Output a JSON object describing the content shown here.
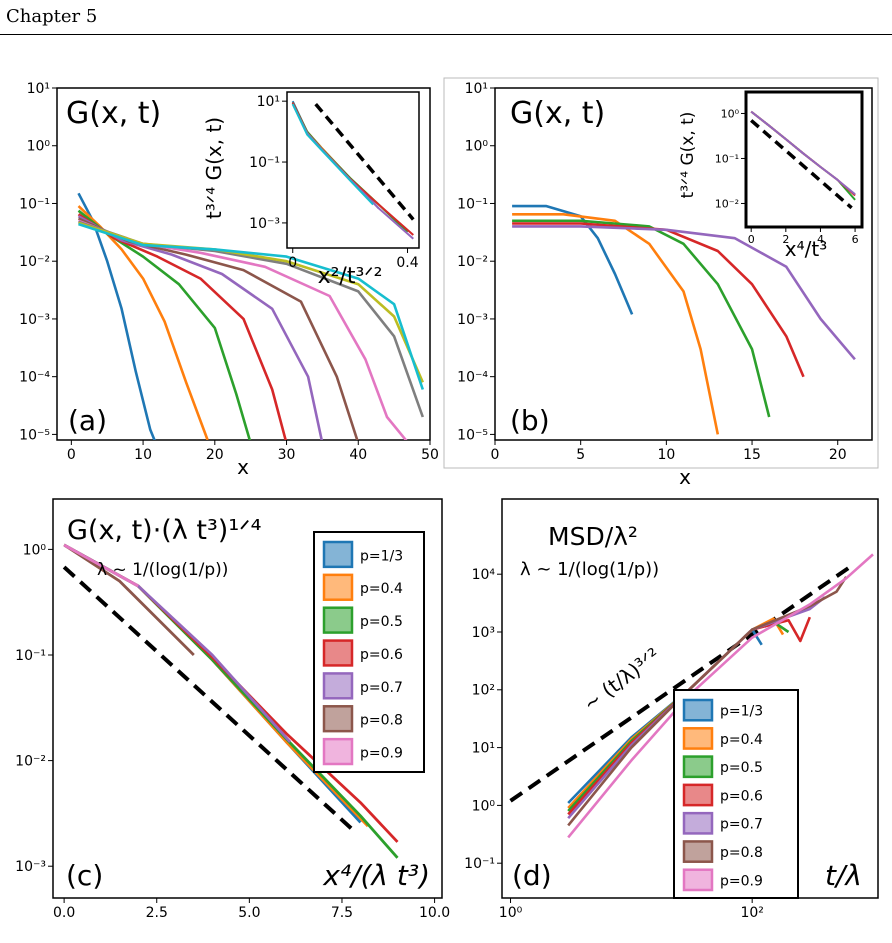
{
  "header": {
    "chapter": "Chapter 5"
  },
  "chart_data": [
    {
      "id": "a",
      "type": "line",
      "panel_label": "(a)",
      "title": "G(x, t)",
      "xlabel": "x",
      "ylabel": "",
      "xlim": [
        -2,
        50
      ],
      "ylim": [
        8e-06,
        10
      ],
      "yscale": "log",
      "xticks": [
        0,
        10,
        20,
        30,
        40,
        50
      ],
      "xtick_labels": [
        "0",
        "10",
        "20",
        "30",
        "40",
        "50"
      ],
      "yticks": [
        1e-05,
        0.0001,
        0.001,
        0.01,
        0.1,
        1,
        10
      ],
      "ytick_labels": [
        "10⁻⁵",
        "10⁻⁴",
        "10⁻³",
        "10⁻²",
        "10⁻¹",
        "10⁰",
        "10¹"
      ],
      "series": [
        {
          "color": "#1f77b4",
          "x": [
            1,
            3,
            5,
            7,
            9,
            11,
            12
          ],
          "y": [
            0.15,
            0.05,
            0.01,
            0.0015,
            0.00012,
            1.2e-05,
            6e-06
          ]
        },
        {
          "color": "#ff7f0e",
          "x": [
            1,
            4,
            7,
            10,
            13,
            16,
            19
          ],
          "y": [
            0.09,
            0.04,
            0.016,
            0.005,
            0.0009,
            8e-05,
            8e-06
          ]
        },
        {
          "color": "#2ca02c",
          "x": [
            1,
            5,
            10,
            15,
            20,
            23,
            25
          ],
          "y": [
            0.075,
            0.03,
            0.012,
            0.004,
            0.0007,
            5e-05,
            7e-06
          ]
        },
        {
          "color": "#d62728",
          "x": [
            1,
            6,
            12,
            18,
            24,
            28,
            30
          ],
          "y": [
            0.065,
            0.025,
            0.012,
            0.005,
            0.001,
            6e-05,
            7e-06
          ]
        },
        {
          "color": "#9467bd",
          "x": [
            1,
            7,
            14,
            21,
            28,
            33,
            35
          ],
          "y": [
            0.06,
            0.023,
            0.013,
            0.006,
            0.0015,
            0.0001,
            7e-06
          ]
        },
        {
          "color": "#8c564b",
          "x": [
            1,
            8,
            16,
            24,
            32,
            37,
            40
          ],
          "y": [
            0.055,
            0.022,
            0.013,
            0.007,
            0.002,
            0.0001,
            7e-06
          ]
        },
        {
          "color": "#e377c2",
          "x": [
            1,
            9,
            18,
            27,
            36,
            41,
            44,
            47
          ],
          "y": [
            0.05,
            0.021,
            0.014,
            0.008,
            0.0025,
            0.0002,
            2e-05,
            7e-06
          ]
        },
        {
          "color": "#7f7f7f",
          "x": [
            1,
            10,
            20,
            30,
            40,
            45,
            49
          ],
          "y": [
            0.048,
            0.02,
            0.015,
            0.009,
            0.003,
            0.0005,
            2e-05
          ]
        },
        {
          "color": "#bcbd22",
          "x": [
            1,
            10,
            20,
            30,
            40,
            45,
            49
          ],
          "y": [
            0.046,
            0.02,
            0.016,
            0.01,
            0.004,
            0.0011,
            8e-05
          ]
        },
        {
          "color": "#17becf",
          "x": [
            1,
            10,
            20,
            30,
            40,
            45,
            49
          ],
          "y": [
            0.044,
            0.019,
            0.016,
            0.012,
            0.005,
            0.0018,
            6e-05
          ]
        }
      ],
      "inset": {
        "title": "",
        "xlabel": "x²/t³ᐟ²",
        "ylabel": "t³ᐟ⁴ G(x, t)",
        "xlim": [
          -0.02,
          0.44
        ],
        "ylim": [
          0.00015,
          20
        ],
        "yscale": "log",
        "xticks": [
          0,
          0.4
        ],
        "xtick_labels": [
          "0",
          "0.4"
        ],
        "yticks": [
          0.001,
          0.1,
          10
        ],
        "ytick_labels": [
          "10⁻³",
          "10⁻¹",
          "10¹"
        ],
        "reference": {
          "x": [
            0.08,
            0.42
          ],
          "y": [
            8,
            0.0013
          ]
        },
        "series": [
          {
            "color": "#1f77b4",
            "x": [
              0,
              0.05,
              0.1,
              0.2,
              0.3
            ],
            "y": [
              10,
              1,
              0.3,
              0.03,
              0.003
            ]
          },
          {
            "color": "#ff7f0e",
            "x": [
              0,
              0.05,
              0.1,
              0.2,
              0.3,
              0.38
            ],
            "y": [
              9,
              1,
              0.3,
              0.03,
              0.004,
              0.0008
            ]
          },
          {
            "color": "#2ca02c",
            "x": [
              0,
              0.05,
              0.1,
              0.2,
              0.3,
              0.4
            ],
            "y": [
              9,
              1,
              0.28,
              0.03,
              0.004,
              0.0005
            ]
          },
          {
            "color": "#d62728",
            "x": [
              0,
              0.05,
              0.1,
              0.2,
              0.3,
              0.42
            ],
            "y": [
              9,
              0.9,
              0.27,
              0.028,
              0.004,
              0.0004
            ]
          },
          {
            "color": "#9467bd",
            "x": [
              0,
              0.05,
              0.1,
              0.2,
              0.3,
              0.42
            ],
            "y": [
              8,
              0.9,
              0.27,
              0.027,
              0.003,
              0.0003
            ]
          },
          {
            "color": "#17becf",
            "x": [
              0,
              0.05,
              0.1,
              0.2,
              0.28
            ],
            "y": [
              8,
              0.8,
              0.25,
              0.025,
              0.004
            ]
          }
        ]
      }
    },
    {
      "id": "b",
      "type": "line",
      "panel_label": "(b)",
      "title": "G(x, t)",
      "xlabel": "x",
      "ylabel": "",
      "xlim": [
        0,
        22
      ],
      "ylim": [
        8e-06,
        10
      ],
      "yscale": "log",
      "xticks": [
        0,
        5,
        10,
        15,
        20
      ],
      "xtick_labels": [
        "0",
        "5",
        "10",
        "15",
        "20"
      ],
      "yticks": [
        1e-05,
        0.0001,
        0.001,
        0.01,
        0.1,
        1,
        10
      ],
      "ytick_labels": [
        "10⁻⁵",
        "10⁻⁴",
        "10⁻³",
        "10⁻²",
        "10⁻¹",
        "10⁰",
        "10¹"
      ],
      "series": [
        {
          "color": "#1f77b4",
          "x": [
            1,
            3,
            5,
            6,
            7,
            8
          ],
          "y": [
            0.09,
            0.09,
            0.06,
            0.025,
            0.006,
            0.0012
          ]
        },
        {
          "color": "#ff7f0e",
          "x": [
            1,
            4,
            7,
            9,
            11,
            12,
            13
          ],
          "y": [
            0.065,
            0.065,
            0.05,
            0.02,
            0.003,
            0.0003,
            1e-05
          ]
        },
        {
          "color": "#2ca02c",
          "x": [
            1,
            5,
            9,
            11,
            13,
            15,
            16
          ],
          "y": [
            0.05,
            0.05,
            0.04,
            0.02,
            0.004,
            0.0003,
            2e-05
          ]
        },
        {
          "color": "#d62728",
          "x": [
            1,
            5,
            10,
            13,
            15,
            17,
            18
          ],
          "y": [
            0.045,
            0.045,
            0.035,
            0.015,
            0.004,
            0.0005,
            0.0001
          ]
        },
        {
          "color": "#9467bd",
          "x": [
            1,
            5,
            10,
            14,
            17,
            19,
            21
          ],
          "y": [
            0.04,
            0.04,
            0.035,
            0.025,
            0.008,
            0.001,
            0.0002
          ]
        }
      ],
      "inset": {
        "title": "",
        "xlabel": "x⁴/t³",
        "ylabel": "t³ᐟ⁴ G(x, t)",
        "xlim": [
          -0.3,
          6.4
        ],
        "ylim": [
          0.003,
          3
        ],
        "yscale": "log",
        "xticks": [
          0,
          2,
          4,
          6
        ],
        "xtick_labels": [
          "0",
          "2",
          "4",
          "6"
        ],
        "yticks": [
          0.01,
          0.1,
          1
        ],
        "ytick_labels": [
          "10⁻²",
          "10⁻¹",
          "10⁰"
        ],
        "reference": {
          "x": [
            0,
            5.8
          ],
          "y": [
            0.7,
            0.008
          ]
        },
        "series": [
          {
            "color": "#1f77b4",
            "x": [
              0,
              1,
              2,
              3
            ],
            "y": [
              1.1,
              0.55,
              0.27,
              0.13
            ]
          },
          {
            "color": "#ff7f0e",
            "x": [
              0,
              1,
              2,
              3,
              4
            ],
            "y": [
              1.1,
              0.55,
              0.27,
              0.13,
              0.065
            ]
          },
          {
            "color": "#2ca02c",
            "x": [
              0,
              1,
              2,
              3,
              4,
              5,
              6
            ],
            "y": [
              1.1,
              0.55,
              0.27,
              0.13,
              0.065,
              0.033,
              0.012
            ]
          },
          {
            "color": "#d62728",
            "x": [
              0,
              1,
              2,
              3,
              4,
              5,
              6
            ],
            "y": [
              1.1,
              0.55,
              0.27,
              0.13,
              0.065,
              0.033,
              0.015
            ]
          },
          {
            "color": "#9467bd",
            "x": [
              0,
              1,
              2,
              3,
              4,
              5,
              6
            ],
            "y": [
              1.1,
              0.55,
              0.27,
              0.13,
              0.065,
              0.033,
              0.016
            ]
          }
        ]
      }
    },
    {
      "id": "c",
      "type": "line",
      "panel_label": "(c)",
      "title": "G(x, t)·(λ t³)¹ᐟ⁴",
      "subtitle": "λ ~ 1/(log(1/p))",
      "xlabel": "x⁴/(λ t³)",
      "ylabel": "",
      "xlim": [
        -0.3,
        10.2
      ],
      "ylim": [
        0.0005,
        3
      ],
      "yscale": "log",
      "xticks": [
        0,
        2.5,
        5,
        7.5,
        10
      ],
      "xtick_labels": [
        "0.0",
        "2.5",
        "5.0",
        "7.5",
        "10.0"
      ],
      "yticks": [
        0.001,
        0.01,
        0.1,
        1
      ],
      "ytick_labels": [
        "10⁻³",
        "10⁻²",
        "10⁻¹",
        "10⁰"
      ],
      "legend": [
        "p=1/3",
        "p=0.4",
        "p=0.5",
        "p=0.6",
        "p=0.7",
        "p=0.8",
        "p=0.9"
      ],
      "reference": {
        "x": [
          0,
          7.8
        ],
        "y": [
          0.68,
          0.0022
        ]
      },
      "series": [
        {
          "name": "p=1/3",
          "color": "#1f77b4",
          "x": [
            0,
            2,
            4,
            6,
            8
          ],
          "y": [
            1.1,
            0.45,
            0.09,
            0.015,
            0.0026
          ]
        },
        {
          "name": "p=0.4",
          "color": "#ff7f0e",
          "x": [
            0,
            2,
            4,
            6,
            8.2
          ],
          "y": [
            1.1,
            0.45,
            0.09,
            0.015,
            0.0024
          ]
        },
        {
          "name": "p=0.5",
          "color": "#2ca02c",
          "x": [
            0,
            2,
            4,
            6,
            8,
            9
          ],
          "y": [
            1.1,
            0.45,
            0.09,
            0.016,
            0.003,
            0.0012
          ]
        },
        {
          "name": "p=0.6",
          "color": "#d62728",
          "x": [
            0,
            2,
            4,
            6,
            8,
            9
          ],
          "y": [
            1.1,
            0.45,
            0.095,
            0.018,
            0.004,
            0.0017
          ]
        },
        {
          "name": "p=0.7",
          "color": "#9467bd",
          "x": [
            0,
            2,
            4,
            6.1
          ],
          "y": [
            1.1,
            0.45,
            0.1,
            0.015
          ]
        },
        {
          "name": "p=0.8",
          "color": "#8c564b",
          "x": [
            0,
            1.5,
            3.5
          ],
          "y": [
            1.1,
            0.5,
            0.1
          ]
        },
        {
          "name": "p=0.9",
          "color": "#e377c2",
          "x": [
            0,
            1,
            2
          ],
          "y": [
            1.1,
            0.7,
            0.45
          ]
        }
      ]
    },
    {
      "id": "d",
      "type": "line",
      "panel_label": "(d)",
      "title": "MSD/λ²",
      "subtitle": "λ ~ 1/(log(1/p))",
      "xlabel": "t/λ",
      "ylabel": "",
      "xlim": [
        0.85,
        1100
      ],
      "ylim": [
        0.025,
        200000
      ],
      "xscale": "log",
      "yscale": "log",
      "xticks": [
        1,
        100
      ],
      "xtick_labels": [
        "10⁰",
        "10²"
      ],
      "yticks": [
        0.1,
        1,
        10,
        100,
        1000,
        10000
      ],
      "ytick_labels": [
        "10⁻¹",
        "10⁰",
        "10¹",
        "10²",
        "10³",
        "10⁴"
      ],
      "legend": [
        "p=1/3",
        "p=0.4",
        "p=0.5",
        "p=0.6",
        "p=0.7",
        "p=0.8",
        "p=0.9"
      ],
      "reference": {
        "x": [
          1,
          700
        ],
        "y": [
          1.2,
          15000
        ],
        "label": "~ (t/λ)³ᐟ²"
      },
      "series": [
        {
          "name": "p=1/3",
          "color": "#1f77b4",
          "x": [
            3,
            10,
            30,
            100,
            120
          ],
          "y": [
            1.1,
            15,
            100,
            1100,
            600
          ]
        },
        {
          "name": "p=0.4",
          "color": "#ff7f0e",
          "x": [
            3,
            10,
            30,
            100,
            150,
            180
          ],
          "y": [
            0.9,
            14,
            100,
            1100,
            1700,
            900
          ]
        },
        {
          "name": "p=0.5",
          "color": "#2ca02c",
          "x": [
            3,
            10,
            30,
            100,
            150,
            200
          ],
          "y": [
            0.8,
            13,
            100,
            1100,
            1500,
            1000
          ]
        },
        {
          "name": "p=0.6",
          "color": "#d62728",
          "x": [
            3,
            10,
            30,
            100,
            200,
            250,
            300
          ],
          "y": [
            0.7,
            12,
            100,
            1100,
            1600,
            700,
            1800
          ]
        },
        {
          "name": "p=0.7",
          "color": "#9467bd",
          "x": [
            3,
            10,
            30,
            100,
            300,
            400
          ],
          "y": [
            0.6,
            11,
            100,
            1100,
            2500,
            4000
          ]
        },
        {
          "name": "p=0.8",
          "color": "#8c564b",
          "x": [
            3,
            10,
            30,
            100,
            300,
            500,
            600
          ],
          "y": [
            0.45,
            10,
            100,
            1100,
            2800,
            5000,
            9000
          ]
        },
        {
          "name": "p=0.9",
          "color": "#e377c2",
          "x": [
            3,
            10,
            30,
            100,
            300,
            600,
            1000
          ],
          "y": [
            0.28,
            6,
            80,
            800,
            3000,
            8500,
            22000
          ]
        }
      ]
    }
  ]
}
